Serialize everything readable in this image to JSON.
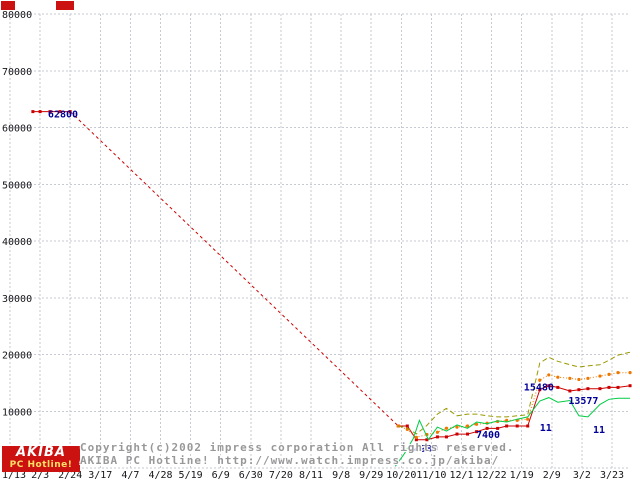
{
  "colors": {
    "accent_red": "#cc1111",
    "grid": "#c6cad2",
    "axis_text": "#15151a",
    "annotation_text": "#000099",
    "watermark_text": "#98989a"
  },
  "watermark": {
    "line1": "Copyright(c)2002 impress corporation All rights reserved.",
    "line2": "AKIBA PC Hotline! http://www.watch.impress.co.jp/akiba/",
    "logo_top": "AKIBA",
    "logo_bottom": "PC Hotline!"
  },
  "chart_data": {
    "type": "line",
    "title": "",
    "xlabel": "",
    "ylabel": "",
    "ylim": [
      0,
      80000
    ],
    "grid": true,
    "legend": "none",
    "yticks": [
      10000,
      20000,
      30000,
      40000,
      50000,
      60000,
      70000,
      80000
    ],
    "x_ticklabels": [
      "1/13",
      "2/3",
      "2/24",
      "3/17",
      "4/7",
      "4/28",
      "5/19",
      "6/9",
      "6/30",
      "7/20",
      "8/11",
      "9/8",
      "9/29",
      "10/20",
      "11/10",
      "12/1",
      "12/22",
      "1/19",
      "2/9",
      "3/2",
      "3/23"
    ],
    "series": [
      {
        "name": "red-squares-early",
        "color": "#cc0000",
        "dash": null,
        "marker": "square",
        "points": [
          [
            0.76,
            62800
          ],
          [
            1.0,
            62800
          ],
          [
            1.33,
            62800
          ],
          [
            1.66,
            62800
          ],
          [
            2.0,
            62800
          ]
        ]
      },
      {
        "name": "red-missing-data-gap",
        "color": "#cc0000",
        "dash": "3,3",
        "marker": null,
        "points": [
          [
            2.0,
            62800
          ],
          [
            12.9,
            7400
          ]
        ]
      },
      {
        "name": "red-squares-main",
        "color": "#cc0000",
        "dash": null,
        "marker": "square",
        "points": [
          [
            12.9,
            7400
          ],
          [
            13.2,
            7400
          ],
          [
            13.5,
            4980
          ],
          [
            13.85,
            4980
          ],
          [
            14.2,
            5480
          ],
          [
            14.5,
            5480
          ],
          [
            14.85,
            5980
          ],
          [
            15.2,
            5980
          ],
          [
            15.5,
            6400
          ],
          [
            15.85,
            6980
          ],
          [
            16.2,
            6980
          ],
          [
            16.5,
            7400
          ],
          [
            16.85,
            7400
          ],
          [
            17.2,
            7400
          ],
          [
            17.6,
            13800
          ],
          [
            17.9,
            14500
          ],
          [
            18.2,
            14200
          ],
          [
            18.6,
            13577
          ],
          [
            18.9,
            13800
          ],
          [
            19.2,
            13980
          ],
          [
            19.6,
            13980
          ],
          [
            19.9,
            14200
          ],
          [
            20.2,
            14200
          ],
          [
            20.6,
            14500
          ]
        ]
      },
      {
        "name": "orange-dotted",
        "color": "#ee7700",
        "dash": "1,2",
        "marker": "dot",
        "points": [
          [
            12.9,
            7400
          ],
          [
            13.2,
            6800
          ],
          [
            13.5,
            5400
          ],
          [
            13.85,
            5900
          ],
          [
            14.2,
            6300
          ],
          [
            14.5,
            7000
          ],
          [
            14.85,
            7200
          ],
          [
            15.2,
            7400
          ],
          [
            15.5,
            7700
          ],
          [
            15.85,
            7900
          ],
          [
            16.2,
            8200
          ],
          [
            16.5,
            8400
          ],
          [
            16.85,
            8400
          ],
          [
            17.2,
            8600
          ],
          [
            17.6,
            15480
          ],
          [
            17.9,
            16400
          ],
          [
            18.2,
            16000
          ],
          [
            18.6,
            15800
          ],
          [
            18.9,
            15600
          ],
          [
            19.2,
            15800
          ],
          [
            19.6,
            16200
          ],
          [
            19.9,
            16500
          ],
          [
            20.2,
            16800
          ],
          [
            20.6,
            16800
          ]
        ]
      },
      {
        "name": "olive-dashed",
        "color": "#999900",
        "dash": "5,3",
        "marker": null,
        "points": [
          [
            12.9,
            7400
          ],
          [
            13.2,
            7000
          ],
          [
            13.5,
            6000
          ],
          [
            13.85,
            7500
          ],
          [
            14.2,
            9500
          ],
          [
            14.5,
            10500
          ],
          [
            14.85,
            9200
          ],
          [
            15.2,
            9500
          ],
          [
            15.5,
            9500
          ],
          [
            15.85,
            9200
          ],
          [
            16.2,
            9000
          ],
          [
            16.5,
            9000
          ],
          [
            16.85,
            9200
          ],
          [
            17.2,
            9400
          ],
          [
            17.6,
            18500
          ],
          [
            17.9,
            19500
          ],
          [
            18.2,
            18800
          ],
          [
            18.6,
            18200
          ],
          [
            18.9,
            17800
          ],
          [
            19.2,
            18000
          ],
          [
            19.6,
            18200
          ],
          [
            19.9,
            19000
          ],
          [
            20.2,
            19900
          ],
          [
            20.6,
            20400
          ]
        ]
      },
      {
        "name": "green-solid",
        "color": "#00cc44",
        "dash": null,
        "marker": null,
        "points": [
          [
            12.8,
            300
          ],
          [
            13.1,
            2500
          ],
          [
            13.4,
            5200
          ],
          [
            13.6,
            8400
          ],
          [
            13.9,
            5000
          ],
          [
            14.2,
            7200
          ],
          [
            14.5,
            6500
          ],
          [
            14.85,
            7600
          ],
          [
            15.2,
            7000
          ],
          [
            15.5,
            8100
          ],
          [
            15.85,
            7800
          ],
          [
            16.2,
            8300
          ],
          [
            16.5,
            8100
          ],
          [
            16.85,
            8600
          ],
          [
            17.2,
            9000
          ],
          [
            17.6,
            11800
          ],
          [
            17.9,
            12400
          ],
          [
            18.2,
            11600
          ],
          [
            18.6,
            11900
          ],
          [
            18.9,
            9200
          ],
          [
            19.2,
            9000
          ],
          [
            19.6,
            11200
          ],
          [
            19.9,
            12100
          ],
          [
            20.2,
            12300
          ],
          [
            20.6,
            12300
          ]
        ]
      }
    ],
    "annotations": [
      {
        "text": "62800",
        "t": 1.26,
        "v": 61800,
        "color": "#000099"
      },
      {
        "text": "4980",
        "t": 13.42,
        "v": 2800,
        "color": "#000099"
      },
      {
        "text": "7400",
        "t": 15.48,
        "v": 5280,
        "color": "#000099"
      },
      {
        "text": "15480",
        "t": 17.07,
        "v": 13700,
        "color": "#000099"
      },
      {
        "text": "13577",
        "t": 18.55,
        "v": 11270,
        "color": "#000099"
      },
      {
        "text": "11",
        "t": 17.6,
        "v": 6500,
        "color": "#000099"
      },
      {
        "text": "11",
        "t": 19.37,
        "v": 6170,
        "color": "#000099"
      }
    ]
  }
}
